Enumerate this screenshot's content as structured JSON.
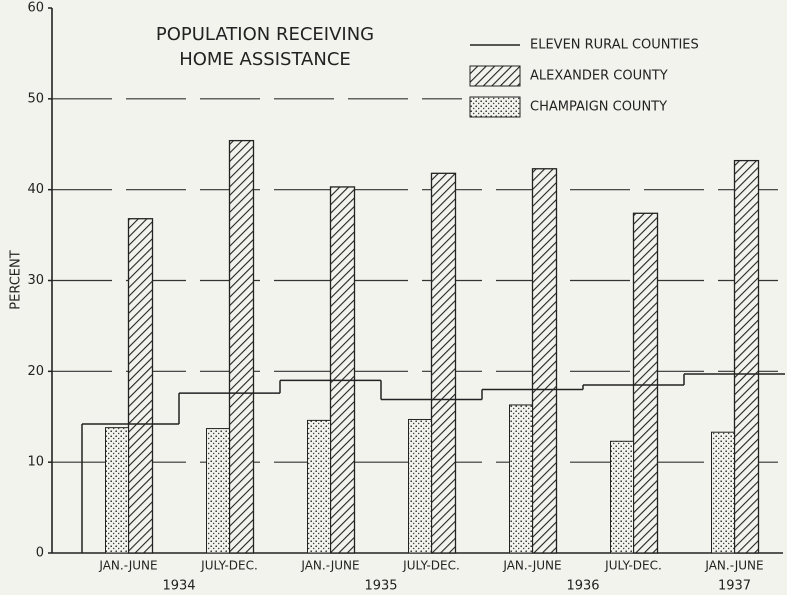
{
  "chart_data": {
    "type": "bar",
    "title": [
      "POPULATION RECEIVING",
      "HOME ASSISTANCE"
    ],
    "ylabel": "PERCENT",
    "categories": [
      "JAN.-JUNE",
      "JULY-DEC.",
      "JAN.-JUNE",
      "JULY-DEC.",
      "JAN.-JUNE",
      "JULY-DEC.",
      "JAN.-JUNE"
    ],
    "years": [
      "1934",
      "1935",
      "1936",
      "1937"
    ],
    "series": [
      {
        "name": "ELEVEN RURAL COUNTIES",
        "type": "step",
        "color": "#222222",
        "values": [
          14.2,
          17.6,
          19.0,
          16.9,
          18.0,
          18.5,
          19.7
        ]
      },
      {
        "name": "ALEXANDER COUNTY",
        "type": "hatch",
        "color": "#222222",
        "values": [
          36.8,
          45.4,
          40.3,
          41.8,
          42.3,
          37.4,
          43.2
        ]
      },
      {
        "name": "CHAMPAIGN COUNTY",
        "type": "dots",
        "color": "#222222",
        "values": [
          13.8,
          13.7,
          14.6,
          14.7,
          16.3,
          12.3,
          13.3
        ]
      }
    ],
    "ylim": [
      0,
      60
    ],
    "yticks": [
      0,
      10,
      20,
      30,
      40,
      50,
      60
    ],
    "grid": true,
    "legend": "upper right"
  }
}
